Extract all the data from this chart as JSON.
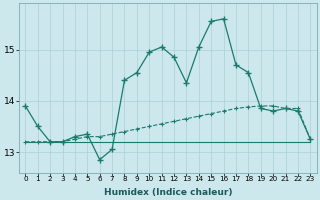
{
  "xlabel": "Humidex (Indice chaleur)",
  "x": [
    0,
    1,
    2,
    3,
    4,
    5,
    6,
    7,
    8,
    9,
    10,
    11,
    12,
    13,
    14,
    15,
    16,
    17,
    18,
    19,
    20,
    21,
    22,
    23
  ],
  "line1": [
    13.9,
    13.5,
    13.2,
    13.2,
    13.3,
    13.35,
    12.85,
    13.05,
    14.4,
    14.55,
    14.95,
    15.05,
    14.85,
    14.35,
    15.05,
    15.55,
    15.6,
    14.7,
    14.55,
    13.85,
    13.8,
    13.85,
    13.8,
    13.25
  ],
  "line2": [
    13.2,
    13.2,
    13.2,
    13.2,
    13.25,
    13.3,
    13.3,
    13.35,
    13.4,
    13.45,
    13.5,
    13.55,
    13.6,
    13.65,
    13.7,
    13.75,
    13.8,
    13.85,
    13.88,
    13.9,
    13.9,
    13.85,
    13.85,
    13.25
  ],
  "line3": [
    13.2,
    13.2,
    13.2,
    13.2,
    13.2,
    13.2,
    13.2,
    13.2,
    13.2,
    13.2,
    13.2,
    13.2,
    13.2,
    13.2,
    13.2,
    13.2,
    13.2,
    13.2,
    13.2,
    13.2,
    13.2,
    13.2,
    13.2,
    13.2
  ],
  "ylim": [
    12.6,
    15.9
  ],
  "yticks": [
    13,
    14,
    15
  ],
  "bg_color": "#cde8ec",
  "line_color": "#1a7a6e",
  "grid_color": "#aad0d4"
}
